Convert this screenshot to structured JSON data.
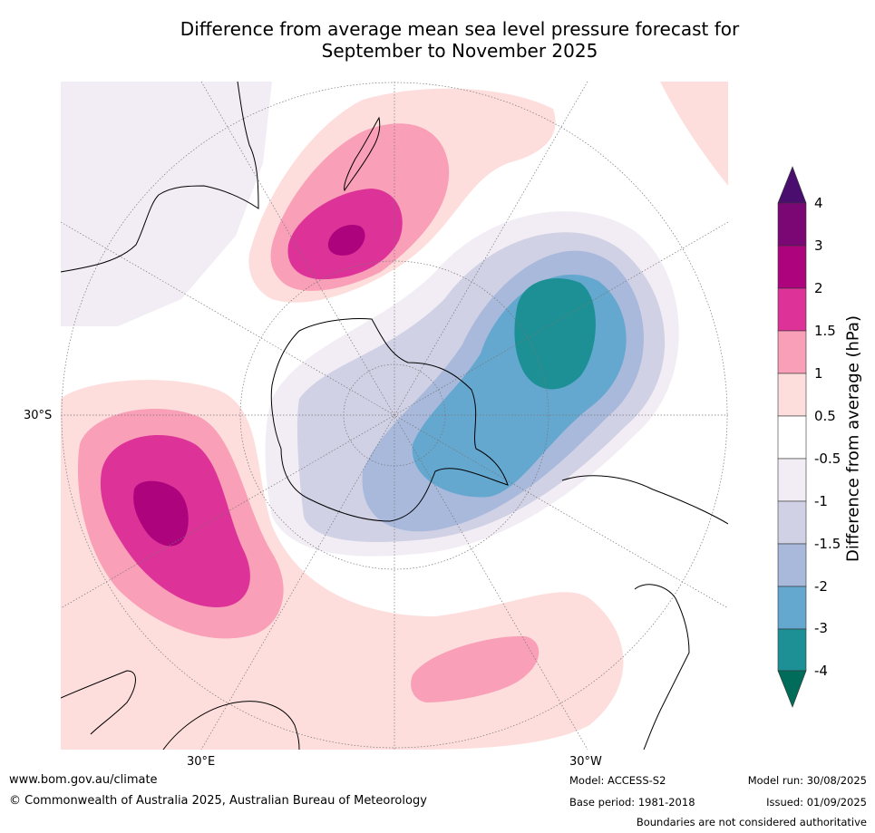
{
  "title_line1": "Difference from average mean sea level pressure forecast for",
  "title_line2": "September to November 2025",
  "map_labels": {
    "lat_30s": "30°S",
    "lon_30e": "30°E",
    "lon_30w": "30°W"
  },
  "colorbar": {
    "title": "Difference from average (hPa)",
    "tick_labels": [
      "4",
      "3",
      "2",
      "1.5",
      "1",
      "0.5",
      "-0.5",
      "-1",
      "-1.5",
      "-2",
      "-3",
      "-4"
    ],
    "colors": {
      "above_4": "#4a0f6e",
      "3_to_4": "#7b0775",
      "2_to_3": "#ad047e",
      "1.5_to_2": "#dd3398",
      "1_to_1.5": "#f99fb7",
      "0.5_to_1": "#fddedd",
      "-0.5_to_0.5": "#ffffff",
      "-1_to_-0.5": "#f2edf4",
      "-1.5_to_-1": "#d1d1e5",
      "-2_to_-1.5": "#a8b9db",
      "-3_to_-2": "#64a7cf",
      "-4_to_-3": "#1c9094",
      "below_-4": "#016c5a"
    }
  },
  "footer": {
    "website": "www.bom.gov.au/climate",
    "copyright": "© Commonwealth of Australia 2025, Australian Bureau of Meteorology",
    "model": "Model: ACCESS-S2",
    "base_period": "Base period: 1981-2018",
    "model_run": "Model run: 30/08/2025",
    "issued": "Issued: 01/09/2025",
    "disclaimer": "Boundaries are not considered authoritative"
  }
}
